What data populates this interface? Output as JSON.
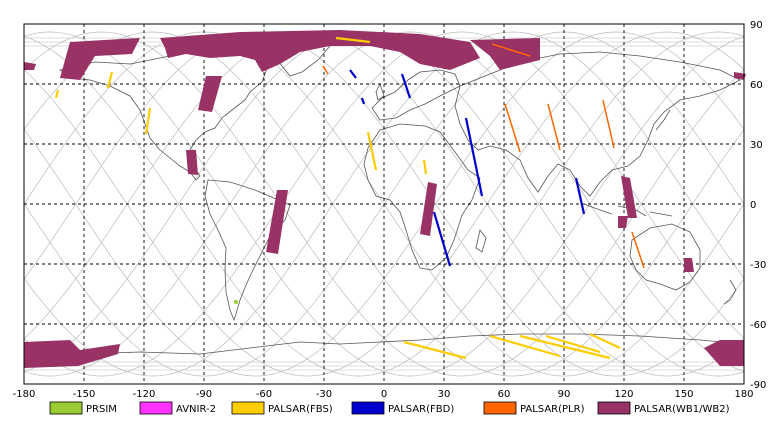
{
  "map": {
    "lon_ticks": [
      "-180",
      "-150",
      "-120",
      "-90",
      "-60",
      "-30",
      "0",
      "30",
      "60",
      "90",
      "120",
      "150",
      "180"
    ],
    "lat_ticks": [
      "90",
      "60",
      "30",
      "0",
      "-30",
      "-60",
      "-90"
    ],
    "lon_range": [
      -180,
      180
    ],
    "lat_range": [
      -90,
      90
    ],
    "grid": true
  },
  "legend": [
    {
      "label": "PRSIM",
      "color": "#99cc33"
    },
    {
      "label": "AVNIR-2",
      "color": "#ff33ff"
    },
    {
      "label": "PALSAR(FBS)",
      "color": "#ffcc00"
    },
    {
      "label": "PALSAR(FBD)",
      "color": "#0000cc"
    },
    {
      "label": "PALSAR(PLR)",
      "color": "#ff6600"
    },
    {
      "label": "PALSAR(WB1/WB2)",
      "color": "#993366"
    }
  ],
  "colors": {
    "orbit": "#bbbbbb",
    "coast": "#555555",
    "frame": "#000000"
  }
}
